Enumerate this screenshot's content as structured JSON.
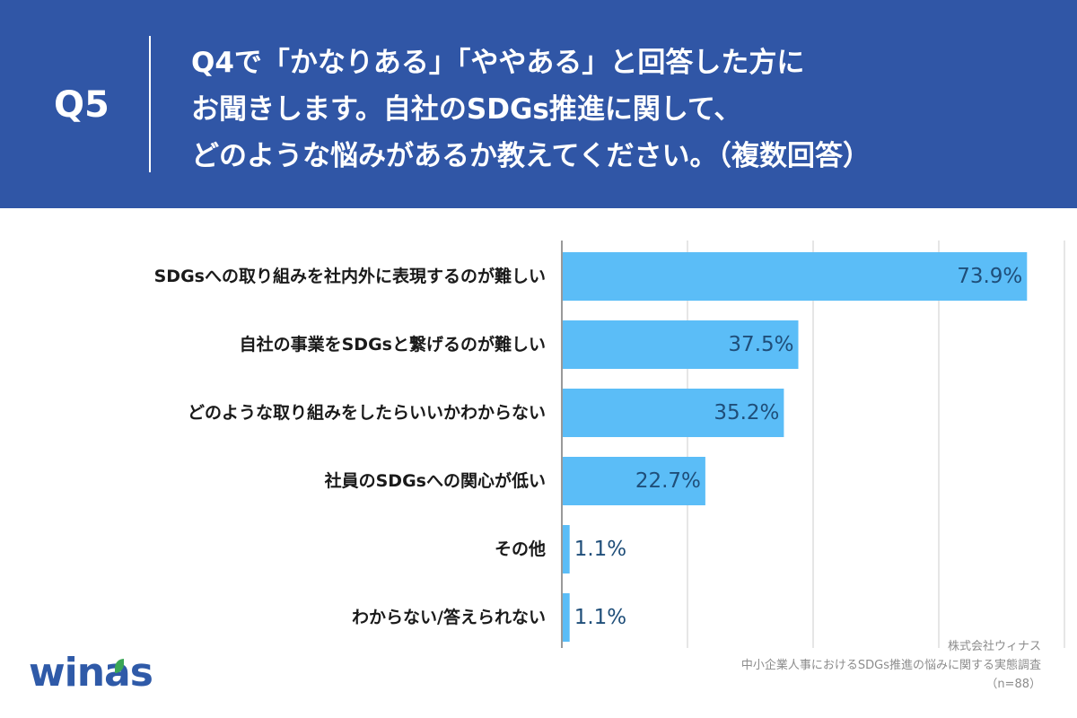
{
  "header": {
    "q_label": "Q5",
    "question_lines": [
      "Q4で「かなりある」「ややある」と回答した方に",
      "お聞きします。自社のSDGs推進に関して、",
      "どのような悩みがあるか教えてください。（複数回答）"
    ]
  },
  "chart_data": {
    "type": "bar",
    "orientation": "horizontal",
    "categories": [
      "SDGsへの取り組みを社内外に表現するのが難しい",
      "自社の事業をSDGsと繋げるのが難しい",
      "どのような取り組みをしたらいいかわからない",
      "社員のSDGsへの関心が低い",
      "その他",
      "わからない/答えられない"
    ],
    "values": [
      73.9,
      37.5,
      35.2,
      22.7,
      1.1,
      1.1
    ],
    "value_labels": [
      "73.9%",
      "37.5%",
      "35.2%",
      "22.7%",
      "1.1%",
      "1.1%"
    ],
    "xlim": [
      0,
      80
    ],
    "grid": true,
    "bar_color": "#5bbdf7",
    "label_color": "#1f4e79"
  },
  "footer": {
    "logo_text": "winas",
    "source_lines": [
      "株式会社ウィナス",
      "中小企業人事におけるSDGs推進の悩みに関する実態調査",
      "（n=88）"
    ]
  },
  "colors": {
    "header_bg": "#3056a6",
    "panel_bg": "#ffffff",
    "grid": "#cccccc",
    "logo": "#2f5aa8"
  }
}
